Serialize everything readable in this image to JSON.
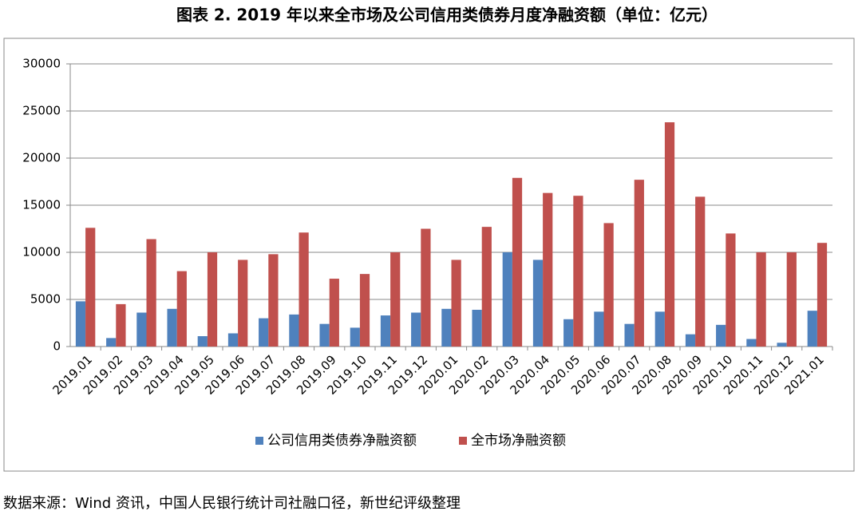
{
  "chart_data": {
    "type": "bar",
    "title": "图表 2. 2019 年以来全市场及公司信用类债券月度净融资额（单位：亿元）",
    "categories": [
      "2019.01",
      "2019.02",
      "2019.03",
      "2019.04",
      "2019.05",
      "2019.06",
      "2019.07",
      "2019.08",
      "2019.09",
      "2019.10",
      "2019.11",
      "2019.12",
      "2020.01",
      "2020.02",
      "2020.03",
      "2020.04",
      "2020.05",
      "2020.06",
      "2020.07",
      "2020.08",
      "2020.09",
      "2020.10",
      "2020.11",
      "2020.12",
      "2021.01"
    ],
    "series": [
      {
        "name": "公司信用类债券净融资额",
        "color": "#4f81bd",
        "values": [
          4800,
          900,
          3600,
          4000,
          1100,
          1400,
          3000,
          3400,
          2400,
          2000,
          3300,
          3600,
          4000,
          3900,
          10000,
          9200,
          2900,
          3700,
          2400,
          3700,
          1300,
          2300,
          800,
          400,
          3800
        ]
      },
      {
        "name": "全市场净融资额",
        "color": "#c0504d",
        "values": [
          12600,
          4500,
          11400,
          8000,
          10000,
          9200,
          9800,
          12100,
          7200,
          7700,
          10000,
          12500,
          9200,
          12700,
          17900,
          16300,
          16000,
          13100,
          17700,
          23800,
          15900,
          12000,
          10000,
          10000,
          11000
        ]
      }
    ],
    "ylim": [
      0,
      30000
    ],
    "yticks": [
      0,
      5000,
      10000,
      15000,
      20000,
      25000,
      30000
    ],
    "grid": true,
    "legend": "bottom",
    "source": "数据来源：Wind 资讯，中国人民银行统计司社融口径，新世纪评级整理"
  }
}
